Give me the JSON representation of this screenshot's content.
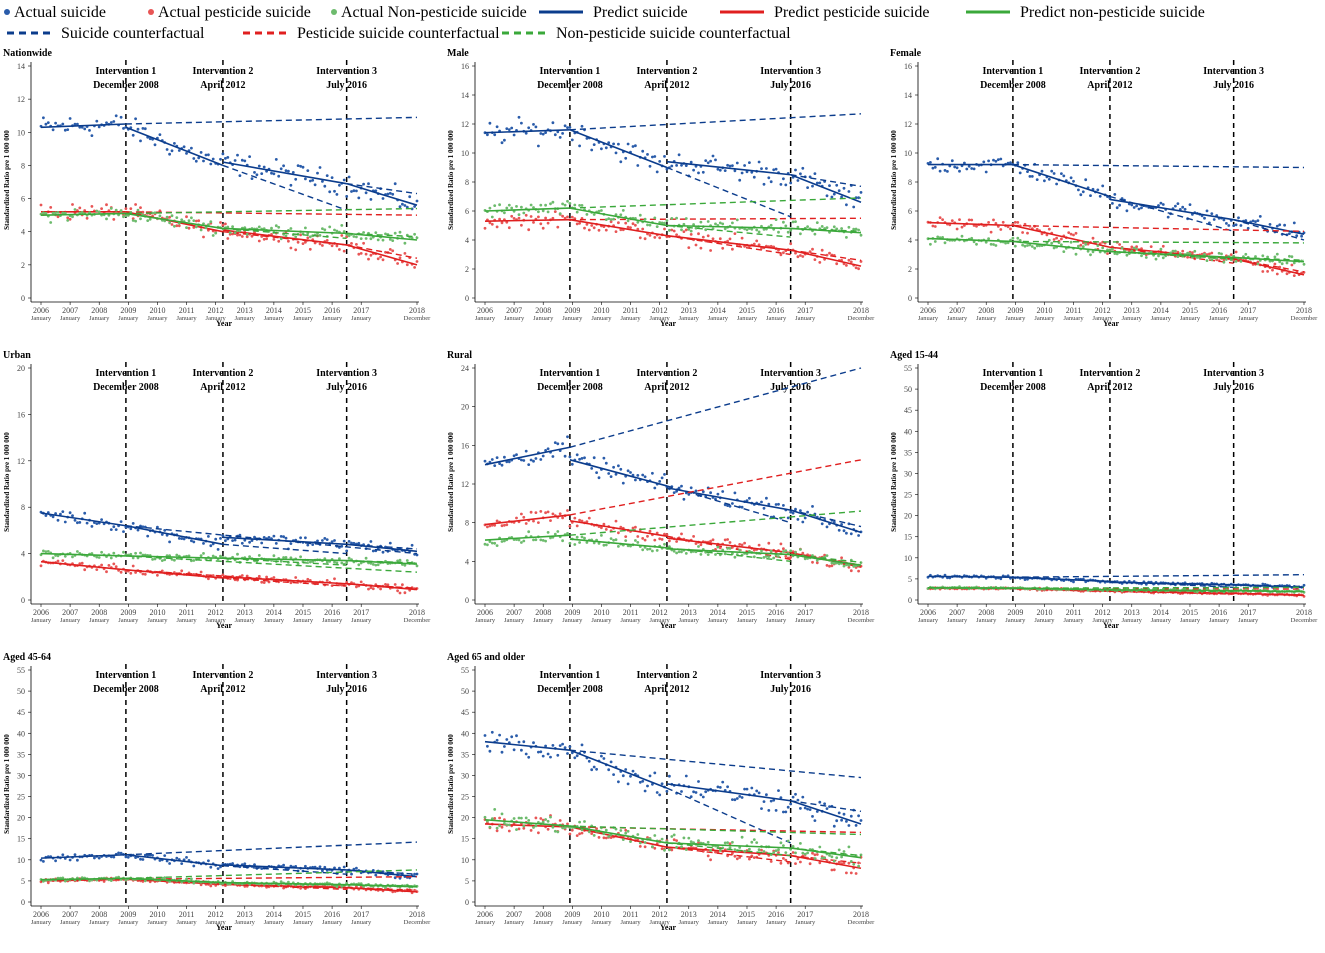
{
  "colors": {
    "suicide": "#0b3c8c",
    "pesticide": "#e01f1f",
    "nonpesticide": "#3aa83a",
    "actual_suicide_point": "#2a5caa",
    "actual_pesticide_point": "#e85555",
    "actual_nonpesticide_point": "#6dbb6d"
  },
  "legend": {
    "row1": [
      {
        "label": "Actual suicide",
        "kind": "point",
        "series": "suicide"
      },
      {
        "label": "Actual pesticide suicide",
        "kind": "point",
        "series": "pesticide"
      },
      {
        "label": "Actual Non-pesticide suicide",
        "kind": "point",
        "series": "nonpesticide"
      },
      {
        "label": "Predict suicide",
        "kind": "line",
        "series": "suicide"
      },
      {
        "label": "Predict pesticide suicide",
        "kind": "line",
        "series": "pesticide"
      },
      {
        "label": "Predict non-pesticide suicide",
        "kind": "line",
        "series": "nonpesticide"
      }
    ],
    "row2": [
      {
        "label": "Suicide counterfactual",
        "kind": "dash",
        "series": "suicide"
      },
      {
        "label": "Pesticide suicide counterfactual",
        "kind": "dash",
        "series": "pesticide"
      },
      {
        "label": "Non-pesticide suicide counterfactual",
        "kind": "dash",
        "series": "nonpesticide"
      }
    ]
  },
  "chart_data": {
    "type": "line",
    "ylabel": "Standardized Ratio pre 1 000 000",
    "xlabel": "Year",
    "x_ticks": [
      "2006",
      "2007",
      "2008",
      "2009",
      "2010",
      "2011",
      "2012",
      "2013",
      "2014",
      "2015",
      "2016",
      "2017",
      "2018"
    ],
    "x_tick_sublabels": [
      "January",
      "January",
      "January",
      "January",
      "January",
      "January",
      "January",
      "January",
      "January",
      "January",
      "January",
      "January",
      "December"
    ],
    "interventions": [
      {
        "label1": "Intervention 1",
        "label2": "December 2008",
        "time": 35
      },
      {
        "label1": "Intervention 2",
        "label2": "April 2012",
        "time": 75
      },
      {
        "label1": "Intervention 3",
        "label2": "July 2016",
        "time": 126
      }
    ],
    "panels": [
      {
        "title": "Nationwide",
        "ylim": [
          0,
          14
        ],
        "yticks": [
          0,
          2,
          4,
          6,
          8,
          10,
          12,
          14
        ],
        "suicide": {
          "seg": [
            [
              10.3,
              10.5
            ],
            [
              10.3,
              8.0
            ],
            [
              8.2,
              6.9
            ],
            [
              6.9,
              5.6
            ]
          ],
          "cf": [
            [
              10.5,
              10.9
            ],
            [
              8.0,
              5.3
            ],
            [
              6.9,
              6.3
            ]
          ],
          "noise": 1.0
        },
        "pesticide": {
          "seg": [
            [
              5.2,
              5.2
            ],
            [
              5.2,
              4.0
            ],
            [
              4.1,
              3.2
            ],
            [
              3.2,
              2.0
            ]
          ],
          "cf": [
            [
              5.2,
              5.0
            ],
            [
              4.0,
              3.2
            ],
            [
              3.2,
              2.4
            ]
          ],
          "noise": 0.7
        },
        "nonpesticide": {
          "seg": [
            [
              5.0,
              5.1
            ],
            [
              5.1,
              4.2
            ],
            [
              4.2,
              3.9
            ],
            [
              3.9,
              3.5
            ]
          ],
          "cf": [
            [
              5.1,
              5.4
            ],
            [
              4.2,
              3.6
            ],
            [
              3.9,
              3.7
            ]
          ],
          "noise": 0.6
        }
      },
      {
        "title": "Male",
        "ylim": [
          0,
          16
        ],
        "yticks": [
          0,
          2,
          4,
          6,
          8,
          10,
          12,
          14,
          16
        ],
        "suicide": {
          "seg": [
            [
              11.4,
              11.6
            ],
            [
              11.6,
              9.0
            ],
            [
              9.4,
              8.5
            ],
            [
              8.5,
              6.6
            ]
          ],
          "cf": [
            [
              11.6,
              12.7
            ],
            [
              9.0,
              5.6
            ],
            [
              8.5,
              7.7
            ]
          ],
          "noise": 1.2
        },
        "pesticide": {
          "seg": [
            [
              5.3,
              5.4
            ],
            [
              5.4,
              4.3
            ],
            [
              4.3,
              3.3
            ],
            [
              3.3,
              2.2
            ]
          ],
          "cf": [
            [
              5.4,
              5.5
            ],
            [
              4.3,
              3.0
            ],
            [
              3.3,
              2.6
            ]
          ],
          "noise": 0.8
        },
        "nonpesticide": {
          "seg": [
            [
              6.0,
              6.2
            ],
            [
              6.2,
              5.0
            ],
            [
              5.0,
              4.8
            ],
            [
              4.8,
              4.5
            ]
          ],
          "cf": [
            [
              6.2,
              6.9
            ],
            [
              5.0,
              4.2
            ],
            [
              4.8,
              4.6
            ]
          ],
          "noise": 0.7
        }
      },
      {
        "title": "Female",
        "ylim": [
          0,
          16
        ],
        "yticks": [
          0,
          2,
          4,
          6,
          8,
          10,
          12,
          14,
          16
        ],
        "suicide": {
          "seg": [
            [
              9.2,
              9.2
            ],
            [
              9.2,
              7.0
            ],
            [
              6.8,
              5.4
            ],
            [
              5.4,
              4.4
            ]
          ],
          "cf": [
            [
              9.2,
              9.0
            ],
            [
              7.0,
              4.6
            ],
            [
              5.4,
              4.0
            ]
          ],
          "noise": 0.9
        },
        "pesticide": {
          "seg": [
            [
              5.2,
              5.0
            ],
            [
              5.0,
              3.5
            ],
            [
              3.5,
              2.7
            ],
            [
              2.7,
              1.6
            ]
          ],
          "cf": [
            [
              5.0,
              4.6
            ],
            [
              3.5,
              2.4
            ],
            [
              2.7,
              1.8
            ]
          ],
          "noise": 0.6
        },
        "nonpesticide": {
          "seg": [
            [
              4.1,
              3.9
            ],
            [
              3.9,
              3.2
            ],
            [
              3.2,
              2.8
            ],
            [
              2.8,
              2.5
            ]
          ],
          "cf": [
            [
              3.9,
              3.8
            ],
            [
              3.2,
              2.7
            ],
            [
              2.8,
              2.6
            ]
          ],
          "noise": 0.5
        }
      },
      {
        "title": "Urban",
        "ylim": [
          0,
          20
        ],
        "yticks": [
          0,
          4,
          8,
          12,
          16,
          20
        ],
        "suicide": {
          "seg": [
            [
              7.5,
              6.4
            ],
            [
              6.4,
              4.8
            ],
            [
              5.4,
              4.8
            ],
            [
              4.8,
              4.2
            ]
          ],
          "cf": [
            [
              6.4,
              4.0
            ],
            [
              4.8,
              4.0
            ],
            [
              4.8,
              4.4
            ]
          ],
          "noise": 0.8
        },
        "pesticide": {
          "seg": [
            [
              3.3,
              2.6
            ],
            [
              2.6,
              1.9
            ],
            [
              2.0,
              1.4
            ],
            [
              1.4,
              0.9
            ]
          ],
          "cf": [
            [
              2.6,
              1.0
            ],
            [
              1.9,
              1.2
            ],
            [
              1.4,
              1.0
            ]
          ],
          "noise": 0.5
        },
        "nonpesticide": {
          "seg": [
            [
              4.0,
              3.8
            ],
            [
              3.8,
              3.6
            ],
            [
              3.6,
              3.4
            ],
            [
              3.4,
              3.1
            ]
          ],
          "cf": [
            [
              3.8,
              2.4
            ],
            [
              3.6,
              3.0
            ],
            [
              3.4,
              3.2
            ]
          ],
          "noise": 0.5
        }
      },
      {
        "title": "Rural",
        "ylim": [
          0,
          24
        ],
        "yticks": [
          0,
          4,
          8,
          12,
          16,
          20,
          24
        ],
        "suicide": {
          "seg": [
            [
              14.0,
              15.8
            ],
            [
              14.5,
              11.8
            ],
            [
              11.6,
              9.3
            ],
            [
              9.3,
              7.0
            ]
          ],
          "cf": [
            [
              15.8,
              24.0
            ],
            [
              11.8,
              8.0
            ],
            [
              9.3,
              7.6
            ]
          ],
          "noise": 1.4
        },
        "pesticide": {
          "seg": [
            [
              7.8,
              8.8
            ],
            [
              8.2,
              6.6
            ],
            [
              6.4,
              4.9
            ],
            [
              4.9,
              3.4
            ]
          ],
          "cf": [
            [
              8.8,
              14.5
            ],
            [
              6.6,
              4.2
            ],
            [
              4.9,
              3.6
            ]
          ],
          "noise": 1.0
        },
        "nonpesticide": {
          "seg": [
            [
              6.2,
              6.7
            ],
            [
              6.3,
              5.4
            ],
            [
              5.3,
              4.7
            ],
            [
              4.7,
              3.6
            ]
          ],
          "cf": [
            [
              6.7,
              9.2
            ],
            [
              5.4,
              4.0
            ],
            [
              4.7,
              3.9
            ]
          ],
          "noise": 0.8
        }
      },
      {
        "title": "Aged 15-44",
        "ylim": [
          0,
          55
        ],
        "yticks": [
          0,
          5,
          10,
          15,
          20,
          25,
          30,
          35,
          40,
          45,
          50,
          55
        ],
        "suicide": {
          "seg": [
            [
              5.6,
              5.4
            ],
            [
              5.4,
              4.4
            ],
            [
              4.2,
              3.6
            ],
            [
              3.6,
              3.0
            ]
          ],
          "cf": [
            [
              5.4,
              6.0
            ],
            [
              4.4,
              3.0
            ],
            [
              3.6,
              3.2
            ]
          ],
          "noise": 0.6
        },
        "pesticide": {
          "seg": [
            [
              2.8,
              2.7
            ],
            [
              2.7,
              2.1
            ],
            [
              2.1,
              1.6
            ],
            [
              1.6,
              1.1
            ]
          ],
          "cf": [
            [
              2.7,
              2.6
            ],
            [
              2.1,
              1.4
            ],
            [
              1.6,
              1.2
            ]
          ],
          "noise": 0.4
        },
        "nonpesticide": {
          "seg": [
            [
              2.9,
              2.8
            ],
            [
              2.8,
              2.4
            ],
            [
              2.4,
              2.2
            ],
            [
              2.2,
              2.0
            ]
          ],
          "cf": [
            [
              2.8,
              3.0
            ],
            [
              2.4,
              2.0
            ],
            [
              2.2,
              2.1
            ]
          ],
          "noise": 0.4
        }
      },
      {
        "title": "Aged 45-64",
        "ylim": [
          0,
          55
        ],
        "yticks": [
          0,
          5,
          10,
          15,
          20,
          25,
          30,
          35,
          40,
          45,
          50,
          55
        ],
        "suicide": {
          "seg": [
            [
              10.4,
              11.2
            ],
            [
              11.2,
              8.6
            ],
            [
              8.8,
              7.6
            ],
            [
              7.6,
              6.0
            ]
          ],
          "cf": [
            [
              11.2,
              14.2
            ],
            [
              8.6,
              6.6
            ],
            [
              7.6,
              6.6
            ]
          ],
          "noise": 1.2
        },
        "pesticide": {
          "seg": [
            [
              5.0,
              5.4
            ],
            [
              5.4,
              4.2
            ],
            [
              4.2,
              3.4
            ],
            [
              3.4,
              2.4
            ]
          ],
          "cf": [
            [
              5.4,
              6.0
            ],
            [
              4.2,
              3.0
            ],
            [
              3.4,
              2.8
            ]
          ],
          "noise": 0.7
        },
        "nonpesticide": {
          "seg": [
            [
              5.3,
              5.6
            ],
            [
              5.6,
              4.6
            ],
            [
              4.6,
              4.1
            ],
            [
              4.1,
              3.6
            ]
          ],
          "cf": [
            [
              5.6,
              7.6
            ],
            [
              4.6,
              4.0
            ],
            [
              4.1,
              3.8
            ]
          ],
          "noise": 0.7
        }
      },
      {
        "title": "Aged 65 and older",
        "ylim": [
          0,
          55
        ],
        "yticks": [
          0,
          5,
          10,
          15,
          20,
          25,
          30,
          35,
          40,
          45,
          50,
          55
        ],
        "suicide": {
          "seg": [
            [
              38.0,
              36.0
            ],
            [
              36.0,
              27.0
            ],
            [
              28.0,
              24.0
            ],
            [
              24.0,
              18.5
            ]
          ],
          "cf": [
            [
              36.0,
              29.5
            ],
            [
              27.0,
              14.0
            ],
            [
              24.0,
              21.5
            ]
          ],
          "noise": 4.5
        },
        "pesticide": {
          "seg": [
            [
              18.5,
              17.8
            ],
            [
              17.8,
              13.0
            ],
            [
              13.0,
              11.0
            ],
            [
              11.0,
              8.0
            ]
          ],
          "cf": [
            [
              17.8,
              16.5
            ],
            [
              13.0,
              9.5
            ],
            [
              11.0,
              9.2
            ]
          ],
          "noise": 3.0
        },
        "nonpesticide": {
          "seg": [
            [
              19.5,
              18.0
            ],
            [
              18.0,
              14.0
            ],
            [
              14.0,
              12.8
            ],
            [
              12.8,
              10.5
            ]
          ],
          "cf": [
            [
              18.0,
              16.0
            ],
            [
              14.0,
              11.0
            ],
            [
              12.8,
              11.0
            ]
          ],
          "noise": 3.0
        }
      }
    ]
  }
}
